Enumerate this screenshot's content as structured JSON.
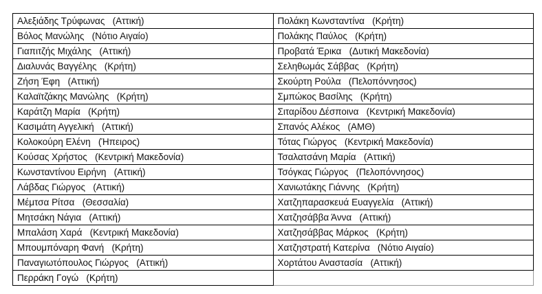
{
  "left_column": [
    "Αλεξιάδης Τρύφωνας   (Αττική)",
    "Βόλος Μανώλης   (Νότιο Αιγαίο)",
    "Γιαπιτζής Μιχάλης   (Αττική)",
    "Διαλυνάς Βαγγέλης   (Κρήτη)",
    "Ζήση Έφη   (Αττική)",
    "Καλαϊτζάκης Μανώλης   (Κρήτη)",
    "Καράτζη Μαρία   (Κρήτη)",
    "Κασιμάτη Αγγελική   (Αττική)",
    "Κολοκούρη Ελένη   (Ήπειρος)",
    "Κούσας Χρήστος   (Κεντρική Μακεδονία)",
    "Κωνσταντίνου Ειρήνη   (Αττική)",
    "Λάβδας Γιώργος   (Αττική)",
    "Μέμτσα Ρίτσα   (Θεσσαλία)",
    "Μητσάκη Νάγια   (Αττική)",
    "Μπαλάση Χαρά   (Κεντρική Μακεδονία)",
    "Μπουμπόναρη Φανή   (Κρήτη)",
    "Παναγιωτόπουλος Γιώργος   (Αττική)",
    "Περράκη Γογώ   (Κρήτη)"
  ],
  "right_column": [
    "Πολάκη Κωνσταντίνα   (Κρήτη)",
    "Πολάκης Παύλος   (Κρήτη)",
    "Προβατά Έρικα   (Δυτική Μακεδονία)",
    "Σεληθωμάς Σάββας   (Κρήτη)",
    "Σκούρτη Ρούλα   (Πελοπόννησος)",
    "Σμπώκος Βασίλης   (Κρήτη)",
    "Σιταρίδου Δέσποινα   (Κεντρική Μακεδονία)",
    "Σπανός Αλέκος   (ΑΜΘ)",
    "Τότας Γιώργος   (Κεντρική Μακεδονία)",
    "Τσαλατσάνη Μαρία   (Αττική)",
    "Τσόγκας Γιώργος   (Πελοπόννησος)",
    "Χανιωτάκης Γιάννης   (Κρήτη)",
    "Χατζηπαρασκευά Ευαγγελία   (Αττική)",
    "Χατζησάββα Άννα   (Αττική)",
    "Χατζησάββας Μάρκος   (Κρήτη)",
    "Χατζηστρατή Κατερίνα   (Νότιο Αιγαίο)",
    "Χορτάτου Αναστασία   (Αττική)",
    ""
  ]
}
